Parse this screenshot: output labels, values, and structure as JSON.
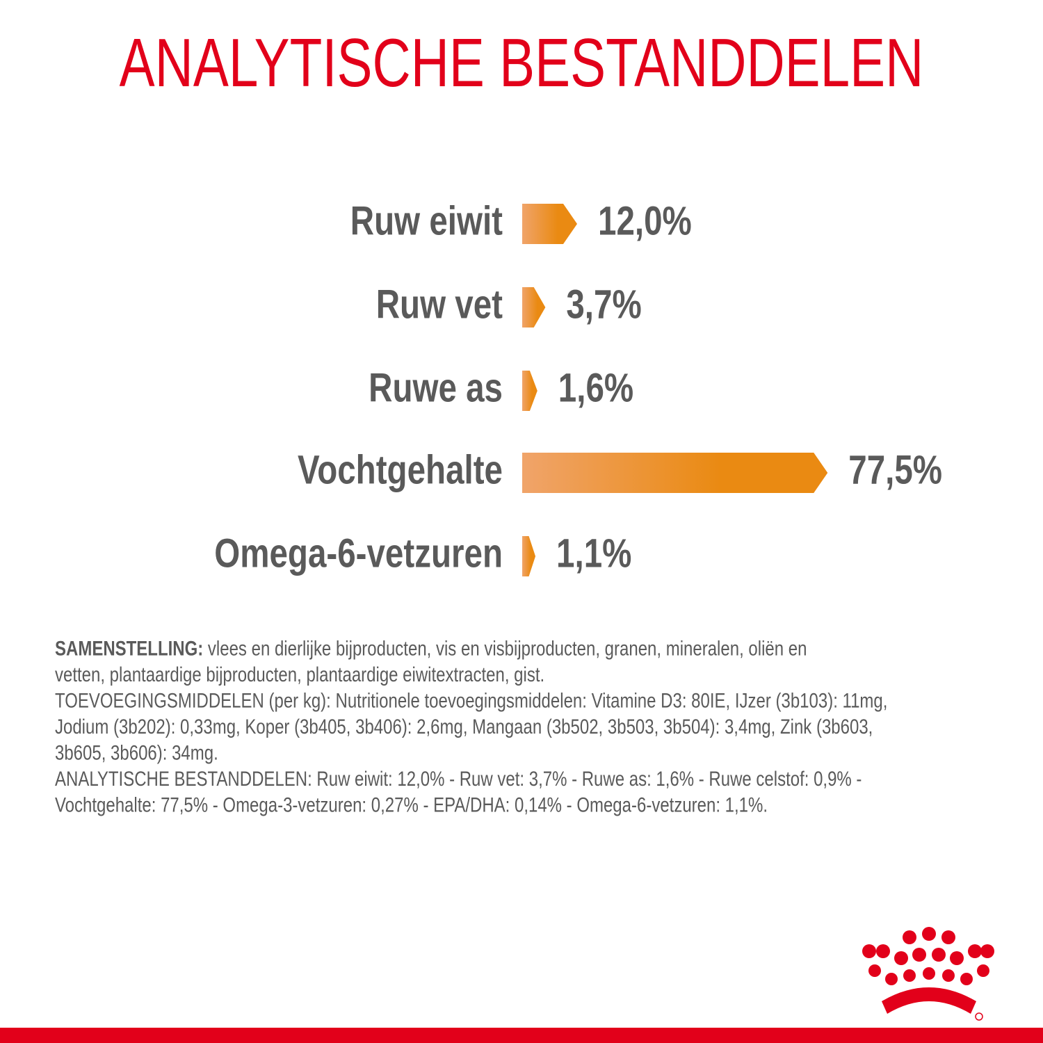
{
  "chart_data": {
    "type": "bar",
    "orientation": "horizontal",
    "title": "ANALYTISCHE BESTANDDELEN",
    "categories": [
      "Ruw eiwit",
      "Ruw vet",
      "Ruwe as",
      "Vochtgehalte",
      "Omega-6-vetzuren"
    ],
    "values": [
      12.0,
      3.7,
      1.6,
      77.5,
      1.1
    ],
    "value_labels": [
      "12,0%",
      "3,7%",
      "1,6%",
      "77,5%",
      "1,1%"
    ],
    "color": "#ea8a12"
  },
  "composition": {
    "label": "SAMENSTELLING:",
    "lines": [
      " vlees en dierlijke bijproducten, vis en visbijproducten, granen, mineralen, oliën en",
      "vetten, plantaardige bijproducten, plantaardige eiwitextracten, gist.",
      "TOEVOEGINGSMIDDELEN (per kg): Nutritionele toevoegingsmiddelen: Vitamine D3: 80IE, IJzer (3b103): 11mg,",
      "Jodium (3b202): 0,33mg, Koper (3b405, 3b406): 2,6mg, Mangaan (3b502, 3b503, 3b504): 3,4mg, Zink (3b603,",
      "3b605, 3b606): 34mg.",
      "ANALYTISCHE BESTANDDELEN: Ruw eiwit: 12,0% - Ruw vet: 3,7% - Ruwe as: 1,6% - Ruwe celstof: 0,9% -",
      "Vochtgehalte: 77,5% - Omega-3-vetzuren: 0,27% - EPA/DHA: 0,14% - Omega-6-vetzuren: 1,1%."
    ]
  }
}
